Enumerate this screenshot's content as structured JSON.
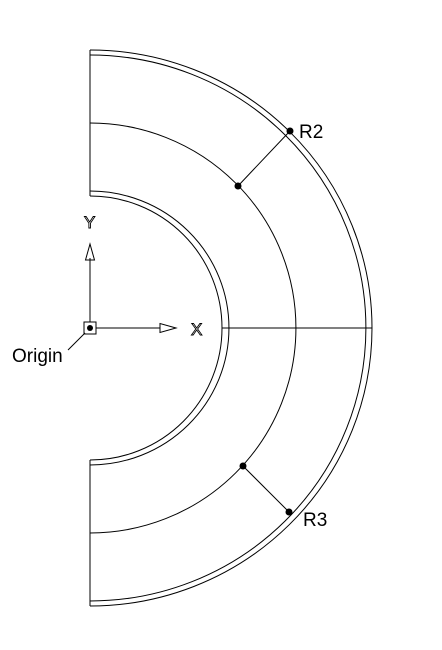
{
  "diagram": {
    "labels": {
      "r2": "R2",
      "r3": "R3",
      "origin": "Origin",
      "x_axis": "X",
      "y_axis": "Y"
    },
    "colors": {
      "stroke": "#000000",
      "background": "#ffffff",
      "axis_label_fill": "#ffffff"
    }
  }
}
